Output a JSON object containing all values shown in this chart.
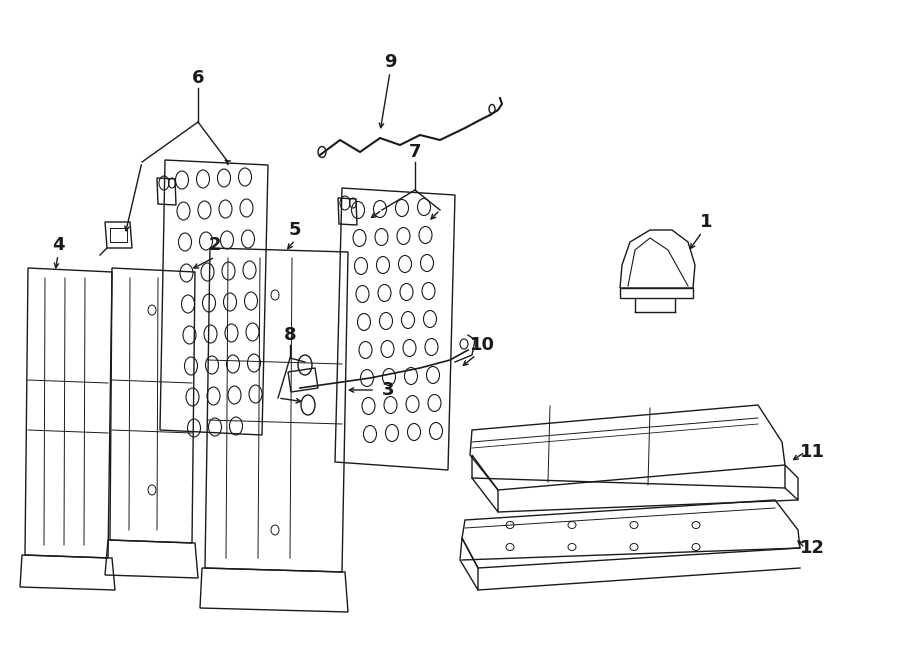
{
  "bg_color": "#ffffff",
  "line_color": "#1a1a1a",
  "lw": 1.0
}
